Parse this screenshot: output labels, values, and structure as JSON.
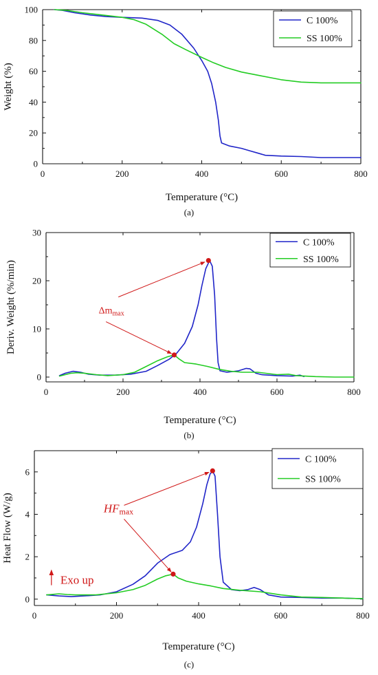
{
  "chart_data": [
    {
      "panel_label": "(a)",
      "type": "line",
      "xlabel": "Temperature (°C)",
      "ylabel": "Weight (%)",
      "xlim": [
        0,
        800
      ],
      "ylim": [
        0,
        100
      ],
      "xticks": [
        0,
        200,
        400,
        600,
        800
      ],
      "yticks": [
        0,
        20,
        40,
        60,
        80,
        100
      ],
      "grid": false,
      "legend_position": "top-right",
      "series": [
        {
          "name": "C 100%",
          "color": "#1f24c8",
          "x": [
            30,
            50,
            80,
            120,
            160,
            200,
            250,
            290,
            320,
            350,
            380,
            400,
            415,
            425,
            435,
            442,
            446,
            450,
            470,
            500,
            520,
            540,
            560,
            600,
            650,
            700,
            750,
            800
          ],
          "y": [
            100,
            99.5,
            98,
            96.5,
            95.5,
            95,
            94.5,
            93,
            90,
            84,
            75,
            67,
            60,
            52,
            40,
            28,
            18,
            13.5,
            11.5,
            10,
            8.5,
            7,
            5.5,
            5,
            4.7,
            4,
            4,
            4
          ]
        },
        {
          "name": "SS 100%",
          "color": "#22cc22",
          "x": [
            30,
            60,
            100,
            150,
            200,
            230,
            260,
            300,
            330,
            360,
            400,
            430,
            460,
            500,
            550,
            600,
            650,
            700,
            750,
            800
          ],
          "y": [
            100,
            99.5,
            98,
            96.5,
            95,
            93.5,
            90.5,
            84,
            78,
            74,
            69,
            65.5,
            62.5,
            59.5,
            57,
            54.5,
            53,
            52.5,
            52.5,
            52.5
          ]
        }
      ]
    },
    {
      "panel_label": "(b)",
      "type": "line",
      "xlabel": "Temperature (°C)",
      "ylabel": "Deriv. Weight (%/min)",
      "xlim": [
        0,
        800
      ],
      "ylim": [
        -1,
        30
      ],
      "xticks": [
        0,
        200,
        400,
        600,
        800
      ],
      "yticks": [
        0,
        10,
        20,
        30
      ],
      "grid": false,
      "legend_position": "top-right",
      "series": [
        {
          "name": "C 100%",
          "color": "#1f24c8",
          "x": [
            35,
            50,
            70,
            90,
            110,
            140,
            180,
            220,
            260,
            290,
            320,
            340,
            360,
            380,
            395,
            405,
            415,
            425,
            432,
            438,
            443,
            447,
            452,
            470,
            500,
            520,
            530,
            545,
            560,
            600,
            640,
            660,
            670
          ],
          "y": [
            0.3,
            0.8,
            1.2,
            1.0,
            0.6,
            0.4,
            0.4,
            0.6,
            1.2,
            2.4,
            3.7,
            5.0,
            7.0,
            10.5,
            15,
            19,
            22.5,
            24.2,
            23,
            17,
            8,
            3,
            1.3,
            1.0,
            1.3,
            1.8,
            1.7,
            0.8,
            0.5,
            0.3,
            0.2,
            0.4,
            0.1
          ]
        },
        {
          "name": "SS 100%",
          "color": "#22cc22",
          "x": [
            35,
            50,
            65,
            80,
            100,
            130,
            160,
            200,
            230,
            260,
            290,
            315,
            333,
            345,
            360,
            390,
            420,
            450,
            480,
            510,
            550,
            600,
            630,
            650,
            700,
            750,
            800
          ],
          "y": [
            0.2,
            0.5,
            0.8,
            0.9,
            0.8,
            0.5,
            0.3,
            0.5,
            1.0,
            2.2,
            3.4,
            4.2,
            4.6,
            3.8,
            3.0,
            2.7,
            2.2,
            1.6,
            1.2,
            1.0,
            1.0,
            0.5,
            0.6,
            0.3,
            0.1,
            0.0,
            0.0
          ]
        }
      ],
      "markers": [
        {
          "x": 422,
          "y": 24.2
        },
        {
          "x": 333,
          "y": 4.6
        }
      ],
      "annotation": {
        "text": "Δm",
        "subscript": "max",
        "x": 170,
        "y": 13.2
      }
    },
    {
      "panel_label": "(c)",
      "type": "line",
      "xlabel": "Temperature (°C)",
      "ylabel": "Heat Flow (W/g)",
      "xlim": [
        0,
        800
      ],
      "ylim": [
        -0.3,
        7
      ],
      "xticks": [
        0,
        200,
        400,
        600,
        800
      ],
      "yticks": [
        0,
        2,
        4,
        6
      ],
      "grid": false,
      "legend_position": "top-right",
      "series": [
        {
          "name": "C 100%",
          "color": "#1f24c8",
          "x": [
            30,
            60,
            90,
            120,
            160,
            200,
            240,
            270,
            300,
            330,
            360,
            380,
            395,
            410,
            420,
            428,
            434,
            440,
            446,
            452,
            460,
            480,
            500,
            520,
            535,
            550,
            570,
            600,
            650,
            700,
            750,
            800
          ],
          "y": [
            0.2,
            0.15,
            0.12,
            0.15,
            0.2,
            0.35,
            0.7,
            1.1,
            1.7,
            2.1,
            2.3,
            2.7,
            3.4,
            4.5,
            5.4,
            5.9,
            6.05,
            5.8,
            4.0,
            2.0,
            0.8,
            0.45,
            0.4,
            0.45,
            0.55,
            0.45,
            0.2,
            0.1,
            0.08,
            0.05,
            0.05,
            0.02
          ]
        },
        {
          "name": "SS 100%",
          "color": "#22cc22",
          "x": [
            30,
            60,
            80,
            100,
            150,
            200,
            240,
            270,
            300,
            320,
            338,
            350,
            370,
            400,
            430,
            460,
            500,
            550,
            600,
            650,
            700,
            750,
            800
          ],
          "y": [
            0.2,
            0.25,
            0.22,
            0.2,
            0.2,
            0.3,
            0.45,
            0.65,
            0.95,
            1.1,
            1.18,
            1.0,
            0.85,
            0.72,
            0.62,
            0.5,
            0.42,
            0.35,
            0.2,
            0.1,
            0.08,
            0.05,
            0.02
          ]
        }
      ],
      "markers": [
        {
          "x": 434,
          "y": 6.05
        },
        {
          "x": 338,
          "y": 1.18
        }
      ],
      "annotation": {
        "text": "HF",
        "subscript": "max",
        "x": 205,
        "y": 4.1
      },
      "exo_label": {
        "text": "Exo up",
        "x": 70,
        "y": 0.85
      }
    }
  ]
}
